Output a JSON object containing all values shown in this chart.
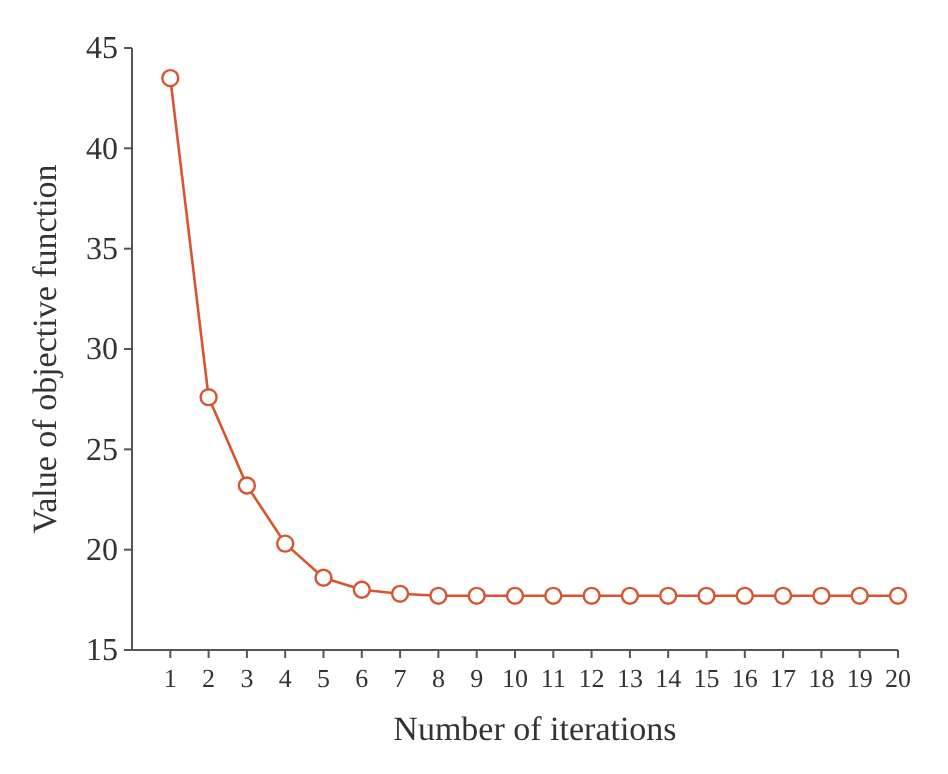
{
  "chart_data": {
    "type": "line",
    "xlabel": "Number of iterations",
    "ylabel": "Value of objective function",
    "x": [
      1,
      2,
      3,
      4,
      5,
      6,
      7,
      8,
      9,
      10,
      11,
      12,
      13,
      14,
      15,
      16,
      17,
      18,
      19,
      20
    ],
    "series": [
      {
        "color": "#d9542e",
        "values": [
          43.5,
          27.6,
          23.2,
          20.3,
          18.6,
          18.0,
          17.8,
          17.7,
          17.7,
          17.7,
          17.7,
          17.7,
          17.7,
          17.7,
          17.7,
          17.7,
          17.7,
          17.7,
          17.7,
          17.7
        ]
      }
    ],
    "xlim": [
      0,
      20
    ],
    "xticks": [
      1,
      2,
      3,
      4,
      5,
      6,
      7,
      8,
      9,
      10,
      11,
      12,
      13,
      14,
      15,
      16,
      17,
      18,
      19,
      20
    ],
    "ylim": [
      15,
      45
    ],
    "yticks": [
      15,
      20,
      25,
      30,
      35,
      40,
      45
    ],
    "grid": false,
    "marker": "circle",
    "line_style": "solid"
  }
}
